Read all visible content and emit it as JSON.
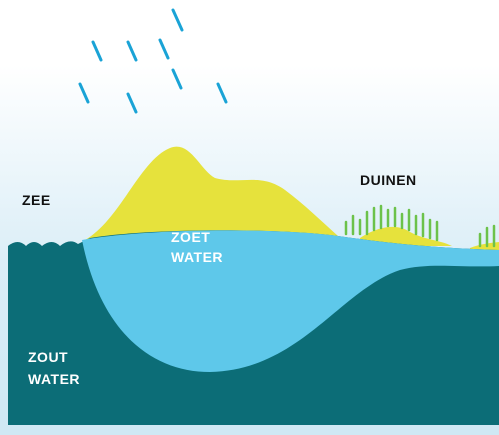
{
  "labels": {
    "sea": "ZEE",
    "dunes": "DUINEN",
    "fresh_water": [
      "ZOET",
      "WATER"
    ],
    "salt_water": [
      "ZOUT",
      "WATER"
    ]
  }
}
